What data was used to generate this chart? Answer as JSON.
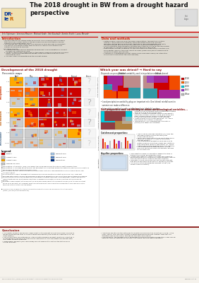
{
  "title": "The 2018 drought in BW from a drought hazard\nperspective",
  "authors": "Erik Tijdeman¹, Verenna Maurer¹, Michael Kraft¹, Veit Blauhuß¹, Kerstin Stahl¹, Lucas Menzel²",
  "header_bg": "#f5f2ec",
  "red_line_color": "#cc0000",
  "section_title_color": "#8b1a1a",
  "intro_title": "Introduction",
  "data_methods_title": "Data and methods",
  "section_left_title": "Development of the 2018 drought",
  "section_right_title": "Which year was driest? → Hard to say",
  "percentile_title": "Percentile maps",
  "months": [
    "April",
    "May",
    "June",
    "July",
    "August",
    "Future"
  ],
  "conclusion_title": "Conclusion",
  "poster_bg": "#ddd9d0",
  "content_bg": "#ffffff",
  "map_colors": {
    "lowest": "#cc0000",
    "low10": "#ff6600",
    "low20": "#ffaa00",
    "normal": "#cccccc",
    "high20": "#aaccee",
    "high10": "#5588cc",
    "high5": "#003388"
  },
  "legend_items": [
    {
      "label": "Lowest",
      "color": "#cc0000"
    },
    {
      "label": "Lowest 10%",
      "color": "#ff6600"
    },
    {
      "label": "Lowest 20%",
      "color": "#ffaa00"
    },
    {
      "label": "Normal 25-75%",
      "color": "#cccccc"
    },
    {
      "label": "highest 20%",
      "color": "#aaccee"
    },
    {
      "label": "highest 10%",
      "color": "#5588cc"
    },
    {
      "label": "highest 5%",
      "color": "#003388"
    }
  ],
  "precip_rows": [
    "1 month",
    "3 months",
    "Precipitation"
  ],
  "soil_rows": [
    "1 month",
    "Soil moisture",
    "3 months"
  ],
  "gw_rows": [
    "Groundwater"
  ],
  "year_colors": {
    "2018": "#cc0000",
    "2003": "#ff6600",
    "2008": "#00ccdd",
    "1983": "#9933cc",
    "Other": "#bbbbbb"
  }
}
